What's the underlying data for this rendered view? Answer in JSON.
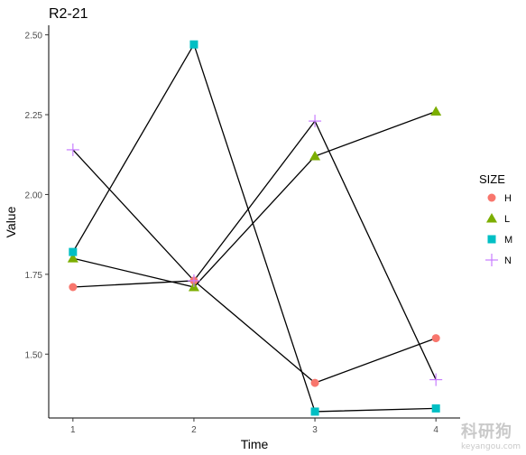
{
  "chart_data": {
    "type": "line",
    "title": "R2-21",
    "xlabel": "Time",
    "ylabel": "Value",
    "x": [
      1,
      2,
      3,
      4
    ],
    "xlim": [
      0.8,
      4.2
    ],
    "ylim": [
      1.3,
      2.53
    ],
    "yticks": [
      1.5,
      1.75,
      2.0,
      2.25,
      2.5
    ],
    "ytick_labels": [
      "1.50",
      "1.75",
      "2.00",
      "2.25",
      "2.50"
    ],
    "xtick_labels": [
      "1",
      "2",
      "3",
      "4"
    ],
    "grid": false,
    "legend": {
      "title": "SIZE",
      "placement": "right"
    },
    "series": [
      {
        "name": "H",
        "values": [
          1.71,
          1.73,
          1.41,
          1.55
        ],
        "color": "#F8766D",
        "marker": "circle"
      },
      {
        "name": "L",
        "values": [
          1.8,
          1.71,
          2.12,
          2.26
        ],
        "color": "#7CAE00",
        "marker": "triangle"
      },
      {
        "name": "M",
        "values": [
          1.82,
          2.47,
          1.32,
          1.33
        ],
        "color": "#00BFC4",
        "marker": "square"
      },
      {
        "name": "N",
        "values": [
          2.14,
          1.73,
          2.23,
          1.42
        ],
        "color": "#C77CFF",
        "marker": "plus"
      }
    ]
  },
  "watermark": {
    "main": "科研狗",
    "sub": "keyangou.com"
  }
}
